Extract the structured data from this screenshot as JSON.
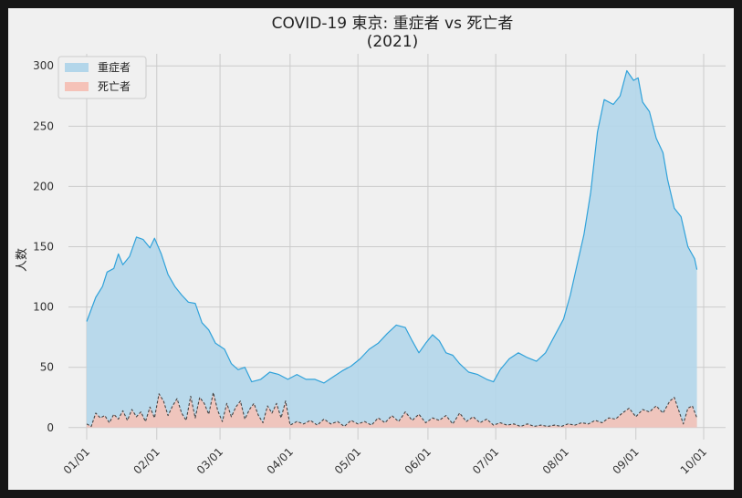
{
  "chart_data": {
    "type": "area",
    "title": "COVID-19 東京: 重症者 vs 死亡者",
    "subtitle": "(2021)",
    "xlabel": "",
    "ylabel": "人数",
    "ylim": [
      -10,
      310
    ],
    "yticks": [
      0,
      50,
      100,
      150,
      200,
      250,
      300
    ],
    "grid": true,
    "legend_position": "top-left",
    "x_ticks": [
      {
        "date": "2021-01-01",
        "label": "01/01"
      },
      {
        "date": "2021-02-01",
        "label": "02/01"
      },
      {
        "date": "2021-03-01",
        "label": "03/01"
      },
      {
        "date": "2021-04-01",
        "label": "04/01"
      },
      {
        "date": "2021-05-01",
        "label": "05/01"
      },
      {
        "date": "2021-06-01",
        "label": "06/01"
      },
      {
        "date": "2021-07-01",
        "label": "07/01"
      },
      {
        "date": "2021-08-01",
        "label": "08/01"
      },
      {
        "date": "2021-09-01",
        "label": "09/01"
      },
      {
        "date": "2021-10-01",
        "label": "10/01"
      }
    ],
    "series": [
      {
        "name": "重症者",
        "color": "#30a2da",
        "fill": "#b3d6ea",
        "data": [
          {
            "x": "2021-01-01",
            "y": 88
          },
          {
            "x": "2021-01-05",
            "y": 108
          },
          {
            "x": "2021-01-08",
            "y": 117
          },
          {
            "x": "2021-01-10",
            "y": 129
          },
          {
            "x": "2021-01-13",
            "y": 132
          },
          {
            "x": "2021-01-15",
            "y": 144
          },
          {
            "x": "2021-01-17",
            "y": 135
          },
          {
            "x": "2021-01-20",
            "y": 142
          },
          {
            "x": "2021-01-23",
            "y": 158
          },
          {
            "x": "2021-01-26",
            "y": 156
          },
          {
            "x": "2021-01-29",
            "y": 149
          },
          {
            "x": "2021-01-31",
            "y": 157
          },
          {
            "x": "2021-02-03",
            "y": 144
          },
          {
            "x": "2021-02-06",
            "y": 127
          },
          {
            "x": "2021-02-09",
            "y": 117
          },
          {
            "x": "2021-02-12",
            "y": 110
          },
          {
            "x": "2021-02-15",
            "y": 104
          },
          {
            "x": "2021-02-18",
            "y": 103
          },
          {
            "x": "2021-02-21",
            "y": 87
          },
          {
            "x": "2021-02-24",
            "y": 81
          },
          {
            "x": "2021-02-27",
            "y": 70
          },
          {
            "x": "2021-03-03",
            "y": 65
          },
          {
            "x": "2021-03-06",
            "y": 53
          },
          {
            "x": "2021-03-09",
            "y": 48
          },
          {
            "x": "2021-03-12",
            "y": 50
          },
          {
            "x": "2021-03-15",
            "y": 38
          },
          {
            "x": "2021-03-19",
            "y": 40
          },
          {
            "x": "2021-03-23",
            "y": 46
          },
          {
            "x": "2021-03-27",
            "y": 44
          },
          {
            "x": "2021-03-31",
            "y": 40
          },
          {
            "x": "2021-04-04",
            "y": 44
          },
          {
            "x": "2021-04-08",
            "y": 40
          },
          {
            "x": "2021-04-12",
            "y": 40
          },
          {
            "x": "2021-04-16",
            "y": 37
          },
          {
            "x": "2021-04-20",
            "y": 42
          },
          {
            "x": "2021-04-24",
            "y": 47
          },
          {
            "x": "2021-04-28",
            "y": 51
          },
          {
            "x": "2021-05-02",
            "y": 57
          },
          {
            "x": "2021-05-06",
            "y": 65
          },
          {
            "x": "2021-05-10",
            "y": 70
          },
          {
            "x": "2021-05-14",
            "y": 78
          },
          {
            "x": "2021-05-18",
            "y": 85
          },
          {
            "x": "2021-05-22",
            "y": 83
          },
          {
            "x": "2021-05-25",
            "y": 72
          },
          {
            "x": "2021-05-28",
            "y": 62
          },
          {
            "x": "2021-05-31",
            "y": 70
          },
          {
            "x": "2021-06-03",
            "y": 77
          },
          {
            "x": "2021-06-06",
            "y": 72
          },
          {
            "x": "2021-06-09",
            "y": 62
          },
          {
            "x": "2021-06-12",
            "y": 60
          },
          {
            "x": "2021-06-15",
            "y": 53
          },
          {
            "x": "2021-06-19",
            "y": 46
          },
          {
            "x": "2021-06-23",
            "y": 44
          },
          {
            "x": "2021-06-27",
            "y": 40
          },
          {
            "x": "2021-06-30",
            "y": 38
          },
          {
            "x": "2021-07-03",
            "y": 48
          },
          {
            "x": "2021-07-07",
            "y": 57
          },
          {
            "x": "2021-07-11",
            "y": 62
          },
          {
            "x": "2021-07-15",
            "y": 58
          },
          {
            "x": "2021-07-19",
            "y": 55
          },
          {
            "x": "2021-07-23",
            "y": 62
          },
          {
            "x": "2021-07-27",
            "y": 76
          },
          {
            "x": "2021-07-31",
            "y": 90
          },
          {
            "x": "2021-08-03",
            "y": 110
          },
          {
            "x": "2021-08-06",
            "y": 135
          },
          {
            "x": "2021-08-09",
            "y": 160
          },
          {
            "x": "2021-08-12",
            "y": 195
          },
          {
            "x": "2021-08-15",
            "y": 245
          },
          {
            "x": "2021-08-18",
            "y": 272
          },
          {
            "x": "2021-08-22",
            "y": 268
          },
          {
            "x": "2021-08-25",
            "y": 275
          },
          {
            "x": "2021-08-28",
            "y": 296
          },
          {
            "x": "2021-08-31",
            "y": 288
          },
          {
            "x": "2021-09-02",
            "y": 290
          },
          {
            "x": "2021-09-04",
            "y": 270
          },
          {
            "x": "2021-09-07",
            "y": 262
          },
          {
            "x": "2021-09-10",
            "y": 240
          },
          {
            "x": "2021-09-13",
            "y": 228
          },
          {
            "x": "2021-09-15",
            "y": 206
          },
          {
            "x": "2021-09-18",
            "y": 182
          },
          {
            "x": "2021-09-21",
            "y": 175
          },
          {
            "x": "2021-09-24",
            "y": 150
          },
          {
            "x": "2021-09-27",
            "y": 140
          },
          {
            "x": "2021-09-28",
            "y": 131
          }
        ]
      },
      {
        "name": "死亡者",
        "color": "#444444",
        "fill": "#f5c2b8",
        "data": [
          {
            "x": "2021-01-01",
            "y": 3
          },
          {
            "x": "2021-01-03",
            "y": 1
          },
          {
            "x": "2021-01-05",
            "y": 12
          },
          {
            "x": "2021-01-07",
            "y": 8
          },
          {
            "x": "2021-01-09",
            "y": 10
          },
          {
            "x": "2021-01-11",
            "y": 4
          },
          {
            "x": "2021-01-13",
            "y": 11
          },
          {
            "x": "2021-01-15",
            "y": 7
          },
          {
            "x": "2021-01-17",
            "y": 14
          },
          {
            "x": "2021-01-19",
            "y": 6
          },
          {
            "x": "2021-01-21",
            "y": 15
          },
          {
            "x": "2021-01-23",
            "y": 9
          },
          {
            "x": "2021-01-25",
            "y": 13
          },
          {
            "x": "2021-01-27",
            "y": 5
          },
          {
            "x": "2021-01-29",
            "y": 17
          },
          {
            "x": "2021-01-31",
            "y": 8
          },
          {
            "x": "2021-02-02",
            "y": 28
          },
          {
            "x": "2021-02-04",
            "y": 22
          },
          {
            "x": "2021-02-06",
            "y": 10
          },
          {
            "x": "2021-02-08",
            "y": 18
          },
          {
            "x": "2021-02-10",
            "y": 24
          },
          {
            "x": "2021-02-12",
            "y": 12
          },
          {
            "x": "2021-02-14",
            "y": 6
          },
          {
            "x": "2021-02-16",
            "y": 26
          },
          {
            "x": "2021-02-18",
            "y": 8
          },
          {
            "x": "2021-02-20",
            "y": 25
          },
          {
            "x": "2021-02-22",
            "y": 20
          },
          {
            "x": "2021-02-24",
            "y": 11
          },
          {
            "x": "2021-02-26",
            "y": 29
          },
          {
            "x": "2021-02-28",
            "y": 14
          },
          {
            "x": "2021-03-02",
            "y": 5
          },
          {
            "x": "2021-03-04",
            "y": 20
          },
          {
            "x": "2021-03-06",
            "y": 9
          },
          {
            "x": "2021-03-08",
            "y": 17
          },
          {
            "x": "2021-03-10",
            "y": 22
          },
          {
            "x": "2021-03-12",
            "y": 7
          },
          {
            "x": "2021-03-14",
            "y": 15
          },
          {
            "x": "2021-03-16",
            "y": 20
          },
          {
            "x": "2021-03-18",
            "y": 10
          },
          {
            "x": "2021-03-20",
            "y": 4
          },
          {
            "x": "2021-03-22",
            "y": 18
          },
          {
            "x": "2021-03-24",
            "y": 12
          },
          {
            "x": "2021-03-26",
            "y": 20
          },
          {
            "x": "2021-03-28",
            "y": 8
          },
          {
            "x": "2021-03-30",
            "y": 22
          },
          {
            "x": "2021-04-01",
            "y": 2
          },
          {
            "x": "2021-04-04",
            "y": 5
          },
          {
            "x": "2021-04-07",
            "y": 3
          },
          {
            "x": "2021-04-10",
            "y": 6
          },
          {
            "x": "2021-04-13",
            "y": 2
          },
          {
            "x": "2021-04-16",
            "y": 7
          },
          {
            "x": "2021-04-19",
            "y": 3
          },
          {
            "x": "2021-04-22",
            "y": 5
          },
          {
            "x": "2021-04-25",
            "y": 1
          },
          {
            "x": "2021-04-28",
            "y": 6
          },
          {
            "x": "2021-05-01",
            "y": 3
          },
          {
            "x": "2021-05-04",
            "y": 5
          },
          {
            "x": "2021-05-07",
            "y": 2
          },
          {
            "x": "2021-05-10",
            "y": 8
          },
          {
            "x": "2021-05-13",
            "y": 4
          },
          {
            "x": "2021-05-16",
            "y": 10
          },
          {
            "x": "2021-05-19",
            "y": 5
          },
          {
            "x": "2021-05-22",
            "y": 13
          },
          {
            "x": "2021-05-25",
            "y": 6
          },
          {
            "x": "2021-05-28",
            "y": 11
          },
          {
            "x": "2021-05-31",
            "y": 4
          },
          {
            "x": "2021-06-03",
            "y": 8
          },
          {
            "x": "2021-06-06",
            "y": 6
          },
          {
            "x": "2021-06-09",
            "y": 10
          },
          {
            "x": "2021-06-12",
            "y": 3
          },
          {
            "x": "2021-06-15",
            "y": 12
          },
          {
            "x": "2021-06-18",
            "y": 5
          },
          {
            "x": "2021-06-21",
            "y": 9
          },
          {
            "x": "2021-06-24",
            "y": 4
          },
          {
            "x": "2021-06-27",
            "y": 7
          },
          {
            "x": "2021-06-30",
            "y": 2
          },
          {
            "x": "2021-07-03",
            "y": 4
          },
          {
            "x": "2021-07-06",
            "y": 2
          },
          {
            "x": "2021-07-09",
            "y": 3
          },
          {
            "x": "2021-07-12",
            "y": 1
          },
          {
            "x": "2021-07-15",
            "y": 3
          },
          {
            "x": "2021-07-18",
            "y": 1
          },
          {
            "x": "2021-07-21",
            "y": 2
          },
          {
            "x": "2021-07-24",
            "y": 1
          },
          {
            "x": "2021-07-27",
            "y": 2
          },
          {
            "x": "2021-07-30",
            "y": 1
          },
          {
            "x": "2021-08-02",
            "y": 3
          },
          {
            "x": "2021-08-05",
            "y": 2
          },
          {
            "x": "2021-08-08",
            "y": 4
          },
          {
            "x": "2021-08-11",
            "y": 3
          },
          {
            "x": "2021-08-14",
            "y": 6
          },
          {
            "x": "2021-08-17",
            "y": 4
          },
          {
            "x": "2021-08-20",
            "y": 8
          },
          {
            "x": "2021-08-23",
            "y": 7
          },
          {
            "x": "2021-08-26",
            "y": 12
          },
          {
            "x": "2021-08-29",
            "y": 16
          },
          {
            "x": "2021-09-01",
            "y": 9
          },
          {
            "x": "2021-09-04",
            "y": 15
          },
          {
            "x": "2021-09-07",
            "y": 13
          },
          {
            "x": "2021-09-10",
            "y": 18
          },
          {
            "x": "2021-09-13",
            "y": 12
          },
          {
            "x": "2021-09-16",
            "y": 22
          },
          {
            "x": "2021-09-18",
            "y": 25
          },
          {
            "x": "2021-09-20",
            "y": 14
          },
          {
            "x": "2021-09-22",
            "y": 3
          },
          {
            "x": "2021-09-24",
            "y": 16
          },
          {
            "x": "2021-09-26",
            "y": 18
          },
          {
            "x": "2021-09-28",
            "y": 8
          }
        ]
      }
    ]
  }
}
